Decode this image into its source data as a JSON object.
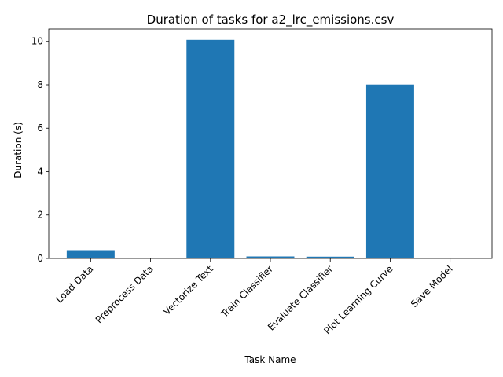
{
  "chart_data": {
    "type": "bar",
    "title": "Duration of tasks for a2_lrc_emissions.csv",
    "xlabel": "Task Name",
    "ylabel": "Duration (s)",
    "categories": [
      "Load Data",
      "Preprocess Data",
      "Vectorize Text",
      "Train Classifier",
      "Evaluate Classifier",
      "Plot Learning Curve",
      "Save Model"
    ],
    "values": [
      0.38,
      0.0,
      10.07,
      0.09,
      0.08,
      8.01,
      0.0
    ],
    "ylim": [
      0,
      10.57
    ],
    "yticks": [
      0,
      2,
      4,
      6,
      8,
      10
    ],
    "bar_color": "#1f77b4",
    "grid": false,
    "legend": "none"
  }
}
